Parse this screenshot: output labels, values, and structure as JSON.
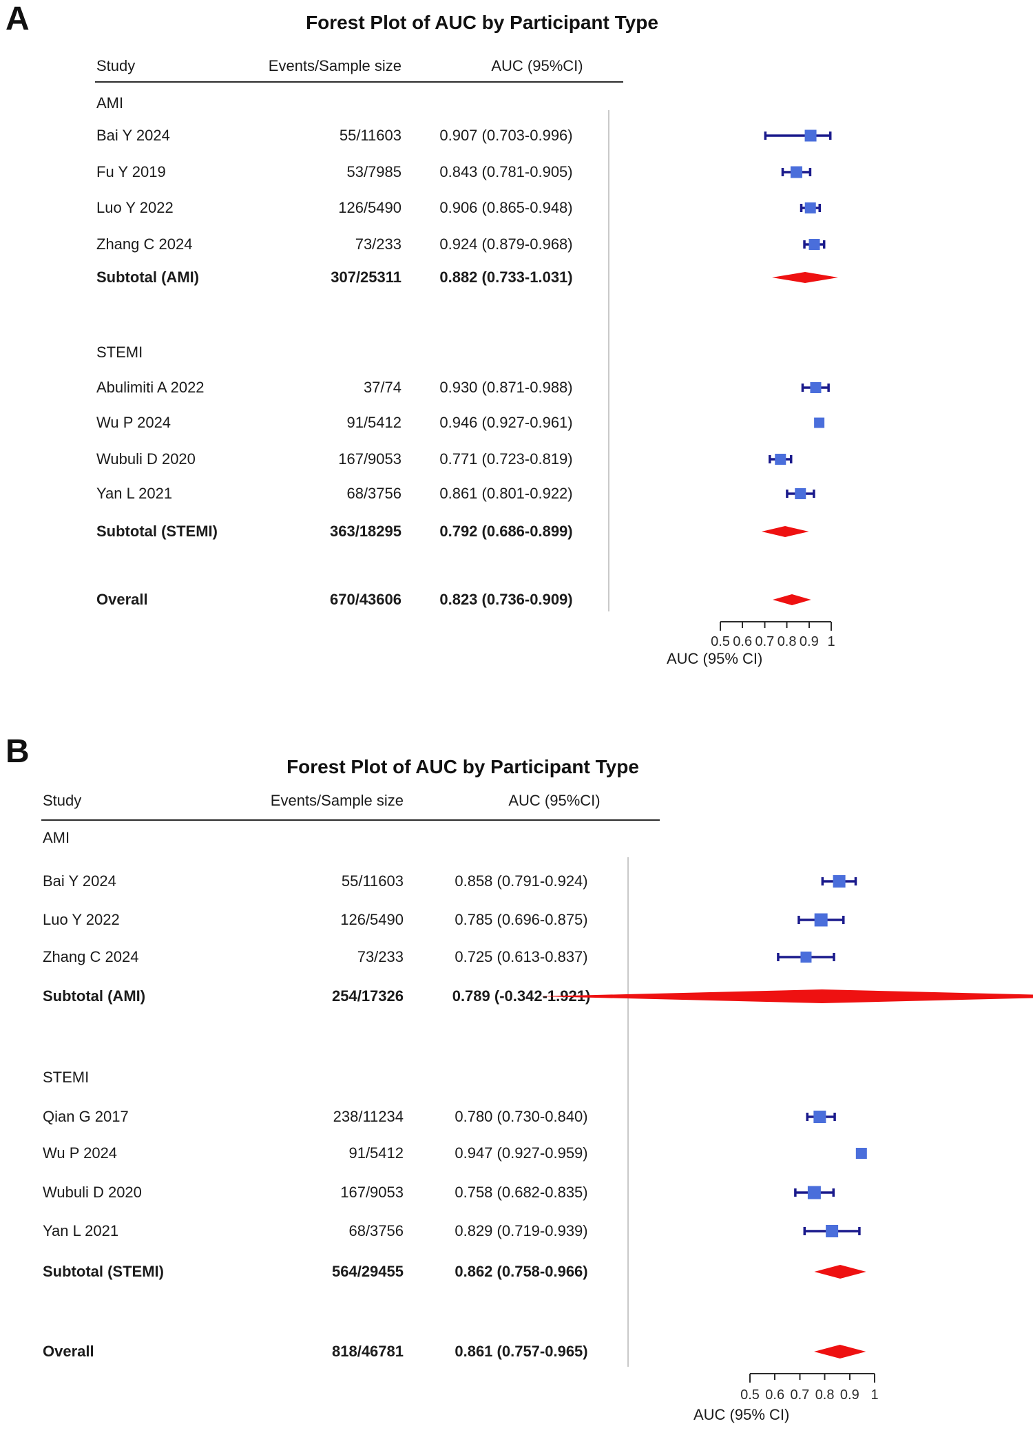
{
  "colors": {
    "square": "#4a6edb",
    "whisker": "#1a1a8c",
    "diamond": "#ee1111",
    "divider": "#c9c9c9",
    "axis": "#2b2b2b",
    "text": "#1b1b1b"
  },
  "chart_data": [
    {
      "type": "forest",
      "panel_label": "A",
      "title": "Forest Plot of AUC by Participant Type",
      "columns": {
        "study": "Study",
        "events": "Events/Sample size",
        "auc": "AUC (95%CI)"
      },
      "axis": {
        "label": "AUC (95% CI)",
        "tick_labels": [
          "0.5",
          "0.6",
          "0.7",
          "0.8",
          "0.9",
          "1"
        ],
        "tick_values": [
          0.5,
          0.6,
          0.7,
          0.8,
          0.9,
          1
        ],
        "xlim": [
          0.5,
          1
        ]
      },
      "rows": [
        {
          "kind": "group",
          "label": "AMI"
        },
        {
          "kind": "study",
          "label": "Bai Y 2024",
          "events": "55/11603",
          "auc_text": "0.907 (0.703-0.996)",
          "est": 0.907,
          "lo": 0.703,
          "hi": 0.996
        },
        {
          "kind": "study",
          "label": "Fu Y 2019",
          "events": "53/7985",
          "auc_text": "0.843 (0.781-0.905)",
          "est": 0.843,
          "lo": 0.781,
          "hi": 0.905
        },
        {
          "kind": "study",
          "label": "Luo Y 2022",
          "events": "126/5490",
          "auc_text": "0.906 (0.865-0.948)",
          "est": 0.906,
          "lo": 0.865,
          "hi": 0.948
        },
        {
          "kind": "study",
          "label": "Zhang C 2024",
          "events": "73/233",
          "auc_text": "0.924 (0.879-0.968)",
          "est": 0.924,
          "lo": 0.879,
          "hi": 0.968
        },
        {
          "kind": "summary",
          "label": "Subtotal (AMI)",
          "events": "307/25311",
          "auc_text": "0.882 (0.733-1.031)",
          "est": 0.882,
          "lo": 0.733,
          "hi": 1.031
        },
        {
          "kind": "group",
          "label": "STEMI"
        },
        {
          "kind": "study",
          "label": "Abulimiti A 2022",
          "events": "37/74",
          "auc_text": "0.930 (0.871-0.988)",
          "est": 0.93,
          "lo": 0.871,
          "hi": 0.988
        },
        {
          "kind": "study",
          "label": "Wu P 2024",
          "events": "91/5412",
          "auc_text": "0.946 (0.927-0.961)",
          "est": 0.946,
          "lo": 0.927,
          "hi": 0.961
        },
        {
          "kind": "study",
          "label": "Wubuli D 2020",
          "events": "167/9053",
          "auc_text": "0.771 (0.723-0.819)",
          "est": 0.771,
          "lo": 0.723,
          "hi": 0.819
        },
        {
          "kind": "study",
          "label": "Yan L 2021",
          "events": "68/3756",
          "auc_text": "0.861 (0.801-0.922)",
          "est": 0.861,
          "lo": 0.801,
          "hi": 0.922
        },
        {
          "kind": "summary",
          "label": "Subtotal (STEMI)",
          "events": "363/18295",
          "auc_text": "0.792 (0.686-0.899)",
          "est": 0.792,
          "lo": 0.686,
          "hi": 0.899
        },
        {
          "kind": "summary",
          "label": "Overall",
          "events": "670/43606",
          "auc_text": "0.823 (0.736-0.909)",
          "est": 0.823,
          "lo": 0.736,
          "hi": 0.909
        }
      ]
    },
    {
      "type": "forest",
      "panel_label": "B",
      "title": "Forest Plot of AUC by Participant Type",
      "columns": {
        "study": "Study",
        "events": "Events/Sample size",
        "auc": "AUC (95%CI)"
      },
      "axis": {
        "label": "AUC (95% CI)",
        "tick_labels": [
          "0.5",
          "0.6",
          "0.7",
          "0.8",
          "0.9",
          "1"
        ],
        "tick_values": [
          0.5,
          0.6,
          0.7,
          0.8,
          0.9,
          1
        ],
        "xlim": [
          0.5,
          1
        ]
      },
      "rows": [
        {
          "kind": "group",
          "label": "AMI"
        },
        {
          "kind": "study",
          "label": "Bai Y 2024",
          "events": "55/11603",
          "auc_text": "0.858 (0.791-0.924)",
          "est": 0.858,
          "lo": 0.791,
          "hi": 0.924
        },
        {
          "kind": "study",
          "label": "Luo Y 2022",
          "events": "126/5490",
          "auc_text": "0.785 (0.696-0.875)",
          "est": 0.785,
          "lo": 0.696,
          "hi": 0.875
        },
        {
          "kind": "study",
          "label": "Zhang C 2024",
          "events": "73/233",
          "auc_text": "0.725 (0.613-0.837)",
          "est": 0.725,
          "lo": 0.613,
          "hi": 0.837
        },
        {
          "kind": "summary",
          "label": "Subtotal (AMI)",
          "events": "254/17326",
          "auc_text": "0.789 (-0.342-1.921)",
          "est": 0.789,
          "lo": -0.342,
          "hi": 1.921
        },
        {
          "kind": "group",
          "label": "STEMI"
        },
        {
          "kind": "study",
          "label": "Qian G 2017",
          "events": "238/11234",
          "auc_text": "0.780 (0.730-0.840)",
          "est": 0.78,
          "lo": 0.73,
          "hi": 0.84
        },
        {
          "kind": "study",
          "label": "Wu P 2024",
          "events": "91/5412",
          "auc_text": "0.947 (0.927-0.959)",
          "est": 0.947,
          "lo": 0.927,
          "hi": 0.959
        },
        {
          "kind": "study",
          "label": "Wubuli D 2020",
          "events": "167/9053",
          "auc_text": "0.758 (0.682-0.835)",
          "est": 0.758,
          "lo": 0.682,
          "hi": 0.835
        },
        {
          "kind": "study",
          "label": "Yan L 2021",
          "events": "68/3756",
          "auc_text": "0.829 (0.719-0.939)",
          "est": 0.829,
          "lo": 0.719,
          "hi": 0.939
        },
        {
          "kind": "summary",
          "label": "Subtotal (STEMI)",
          "events": "564/29455",
          "auc_text": "0.862 (0.758-0.966)",
          "est": 0.862,
          "lo": 0.758,
          "hi": 0.966
        },
        {
          "kind": "summary",
          "label": "Overall",
          "events": "818/46781",
          "auc_text": "0.861 (0.757-0.965)",
          "est": 0.861,
          "lo": 0.757,
          "hi": 0.965
        }
      ]
    }
  ]
}
